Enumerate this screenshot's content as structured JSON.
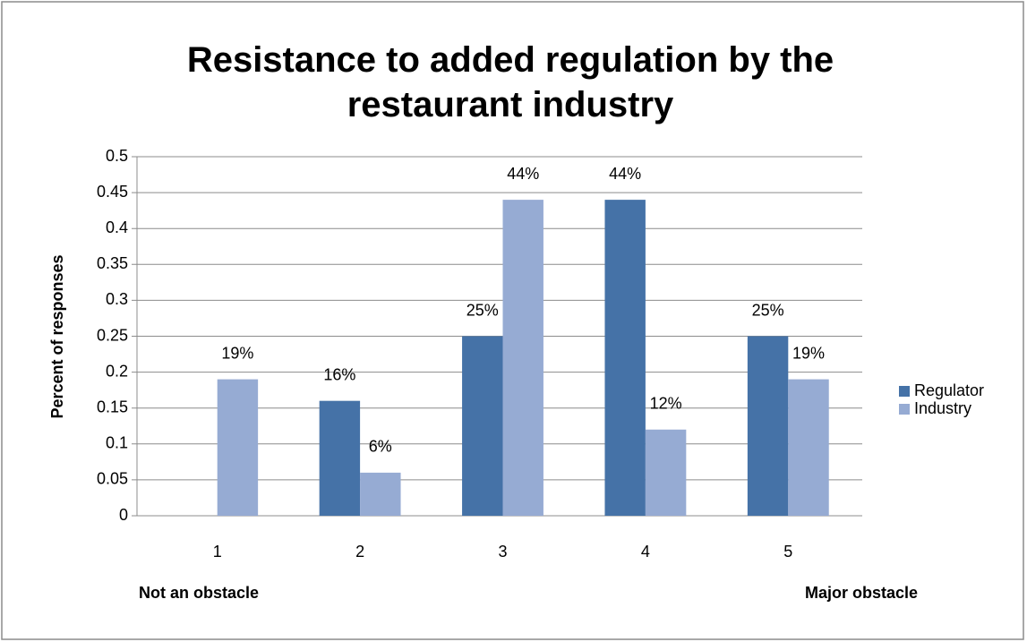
{
  "chart_data": {
    "type": "bar",
    "title": "Resistance to added regulation by the restaurant industry",
    "ylabel": "Percent of responses",
    "annotations": [
      "Not an obstacle",
      "Major obstacle"
    ],
    "categories": [
      "1",
      "2",
      "3",
      "4",
      "5"
    ],
    "series": [
      {
        "name": "Regulator",
        "color": "#4572a7",
        "values": [
          0,
          0.16,
          0.25,
          0.44,
          0.25
        ],
        "value_labels": [
          null,
          "16%",
          "25%",
          "44%",
          "25%"
        ]
      },
      {
        "name": "Industry",
        "color": "#96abd3",
        "values": [
          0.19,
          0.06,
          0.44,
          0.12,
          0.19
        ],
        "value_labels": [
          "19%",
          "6%",
          "44%",
          "12%",
          "19%"
        ]
      }
    ],
    "ylim": [
      0,
      0.5
    ],
    "yticks": [
      0,
      0.05,
      0.1,
      0.15,
      0.2,
      0.25,
      0.3,
      0.35,
      0.4,
      0.45,
      0.5
    ],
    "grid": true,
    "legend": "right"
  }
}
